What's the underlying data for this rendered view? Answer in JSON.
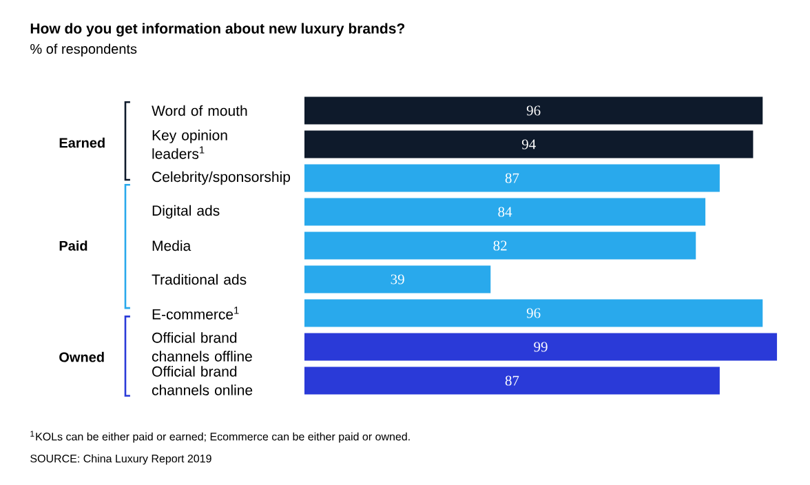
{
  "chart_data": {
    "type": "bar",
    "orientation": "horizontal",
    "title": "How do you get information about new luxury brands?",
    "subtitle": "% of respondents",
    "categories": [
      "Word of mouth",
      "Key opinion leaders$^{1}$",
      "Celebrity/sponsorship",
      "Digital ads",
      "Media",
      "Traditional ads",
      "E-commerce$^{1}$",
      "Official brand channels offline",
      "Official brand channels online"
    ],
    "values": [
      96,
      94,
      87,
      84,
      82,
      39,
      96,
      99,
      87
    ],
    "colors": [
      "#0e1a2b",
      "#0e1a2b",
      "#29a9ec",
      "#29a9ec",
      "#29a9ec",
      "#29a9ec",
      "#29a9ec",
      "#2a3ad8",
      "#2a3ad8"
    ],
    "data_labels": true,
    "annotations": [
      "Earned",
      "Paid",
      "Owned",
      "$^{1}$KOLs can be either paid or earned; Ecommerce can be either paid or owned.",
      "SOURCE: China Luxury Report 2019"
    ]
  }
}
